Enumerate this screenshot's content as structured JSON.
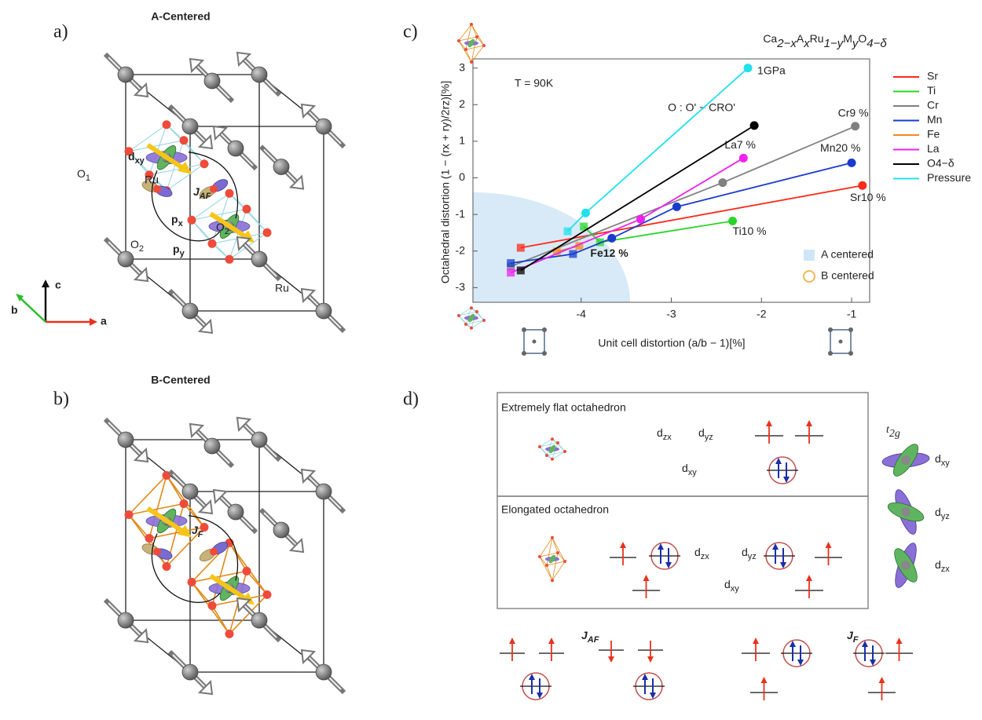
{
  "panel_a": {
    "label": "a)",
    "title": "A-Centered",
    "orbital": {
      "t": "d",
      "sub": "xy"
    },
    "oxygen_1": {
      "t": "O",
      "sub": "1"
    },
    "ru_top": "Ru",
    "coupling": {
      "t": "J",
      "sub": "AF"
    },
    "px": {
      "t": "p",
      "sub": "x"
    },
    "py": {
      "t": "p",
      "sub": "y"
    },
    "oxygen_2a": {
      "t": "O",
      "sub": "2"
    },
    "oxygen_2b": {
      "t": "O",
      "sub": "2"
    },
    "ru_bottom": "Ru",
    "axes": [
      "c",
      "b",
      "a"
    ]
  },
  "panel_b": {
    "label": "b)",
    "title": "B-Centered",
    "coupling": {
      "t": "J",
      "sub": "F"
    }
  },
  "chart_data": {
    "type": "scatter",
    "label": "c)",
    "title": [
      {
        "t": "Ca",
        "sub": "2−x"
      },
      {
        "t": "A",
        "sub": "x"
      },
      {
        "t": "Ru",
        "sub": "1−y"
      },
      {
        "t": "M",
        "sub": "y"
      },
      {
        "t": "O",
        "sub": "4−δ"
      }
    ],
    "annotation": "T = 90K",
    "xlabel": "Unit cell distortion (a/b − 1)[%]",
    "ylabel": "Octahedral distortion (1 − (rx + ry)/2rz)[%]",
    "xlim": [
      -5.2,
      -0.8
    ],
    "xticks": [
      -4,
      -3,
      -2,
      -1
    ],
    "ylim": [
      -3.4,
      3.25
    ],
    "yticks": [
      -3,
      -2,
      -1,
      0,
      1,
      2,
      3
    ],
    "legend": "right",
    "series": [
      {
        "name": "Sr",
        "color": "#ff2a1a",
        "x": [
          -4.67,
          -0.88
        ],
        "values": [
          -1.91,
          -0.21
        ],
        "markers": [
          "square",
          "circle"
        ],
        "end_label": "Sr10 %"
      },
      {
        "name": "Ti",
        "color": "#2ad52a",
        "x": [
          -3.97,
          -3.79,
          -2.32
        ],
        "values": [
          -1.33,
          -1.76,
          -1.18
        ],
        "markers": [
          "square",
          "square",
          "circle"
        ],
        "end_label": "Ti10 %"
      },
      {
        "name": "Cr",
        "color": "#808080",
        "x": [
          -4.78,
          -2.43,
          -0.96
        ],
        "values": [
          -2.42,
          -0.13,
          1.41
        ],
        "markers": [
          "square",
          "circle",
          "circle"
        ],
        "end_label": "Cr9 %"
      },
      {
        "name": "Mn",
        "color": "#1a3ccc",
        "x": [
          -4.78,
          -4.09,
          -3.66,
          -2.94,
          -1.0
        ],
        "values": [
          -2.33,
          -2.08,
          -1.65,
          -0.79,
          0.41
        ],
        "markers": [
          "square",
          "square",
          "circle",
          "circle",
          "circle"
        ],
        "end_label": "Mn20 %"
      },
      {
        "name": "Fe",
        "color": "#f08a24",
        "x": [
          -4.27,
          -4.02
        ],
        "values": [
          -2.01,
          -1.86
        ],
        "markers": [
          "square",
          "square"
        ],
        "end_label": "Fe12 %"
      },
      {
        "name": "La",
        "color": "#ee22ee",
        "x": [
          -4.78,
          -3.34,
          -2.2
        ],
        "values": [
          -2.59,
          -1.13,
          0.54
        ],
        "markers": [
          "square",
          "circle",
          "circle"
        ],
        "end_label": "La7 %"
      },
      {
        "name": "O4−δ",
        "color": "#000000",
        "x": [
          -4.67,
          -2.08
        ],
        "values": [
          -2.53,
          1.43
        ],
        "markers": [
          "square",
          "circle"
        ],
        "end_label": "O : O' − CRO'"
      },
      {
        "name": "Pressure",
        "color": "#22e0ee",
        "x": [
          -4.15,
          -3.95,
          -2.15
        ],
        "values": [
          -1.46,
          -0.96,
          3.0
        ],
        "markers": [
          "square",
          "circle",
          "circle"
        ],
        "end_label": "1GPa"
      }
    ],
    "region_legend": [
      "A centered",
      "B centered"
    ]
  },
  "panel_d": {
    "label": "d)",
    "flat_title": "Extremely flat octahedron",
    "flat_dzx": {
      "t": "d",
      "sub": "zx"
    },
    "flat_dyz": {
      "t": "d",
      "sub": "yz"
    },
    "flat_dxy": {
      "t": "d",
      "sub": "xy"
    },
    "elong_title": "Elongated octahedron",
    "elong_dzx": {
      "t": "d",
      "sub": "zx"
    },
    "elong_dyz": {
      "t": "d",
      "sub": "yz"
    },
    "elong_dxy": {
      "t": "d",
      "sub": "xy"
    },
    "t2g": {
      "t": "t",
      "sub": "2g"
    },
    "t2g_dxy": {
      "t": "d",
      "sub": "xy"
    },
    "t2g_dyz": {
      "t": "d",
      "sub": "yz"
    },
    "t2g_dzx": {
      "t": "d",
      "sub": "zx"
    },
    "jaf": {
      "t": "J",
      "sub": "AF"
    },
    "jf": {
      "t": "J",
      "sub": "F"
    }
  }
}
